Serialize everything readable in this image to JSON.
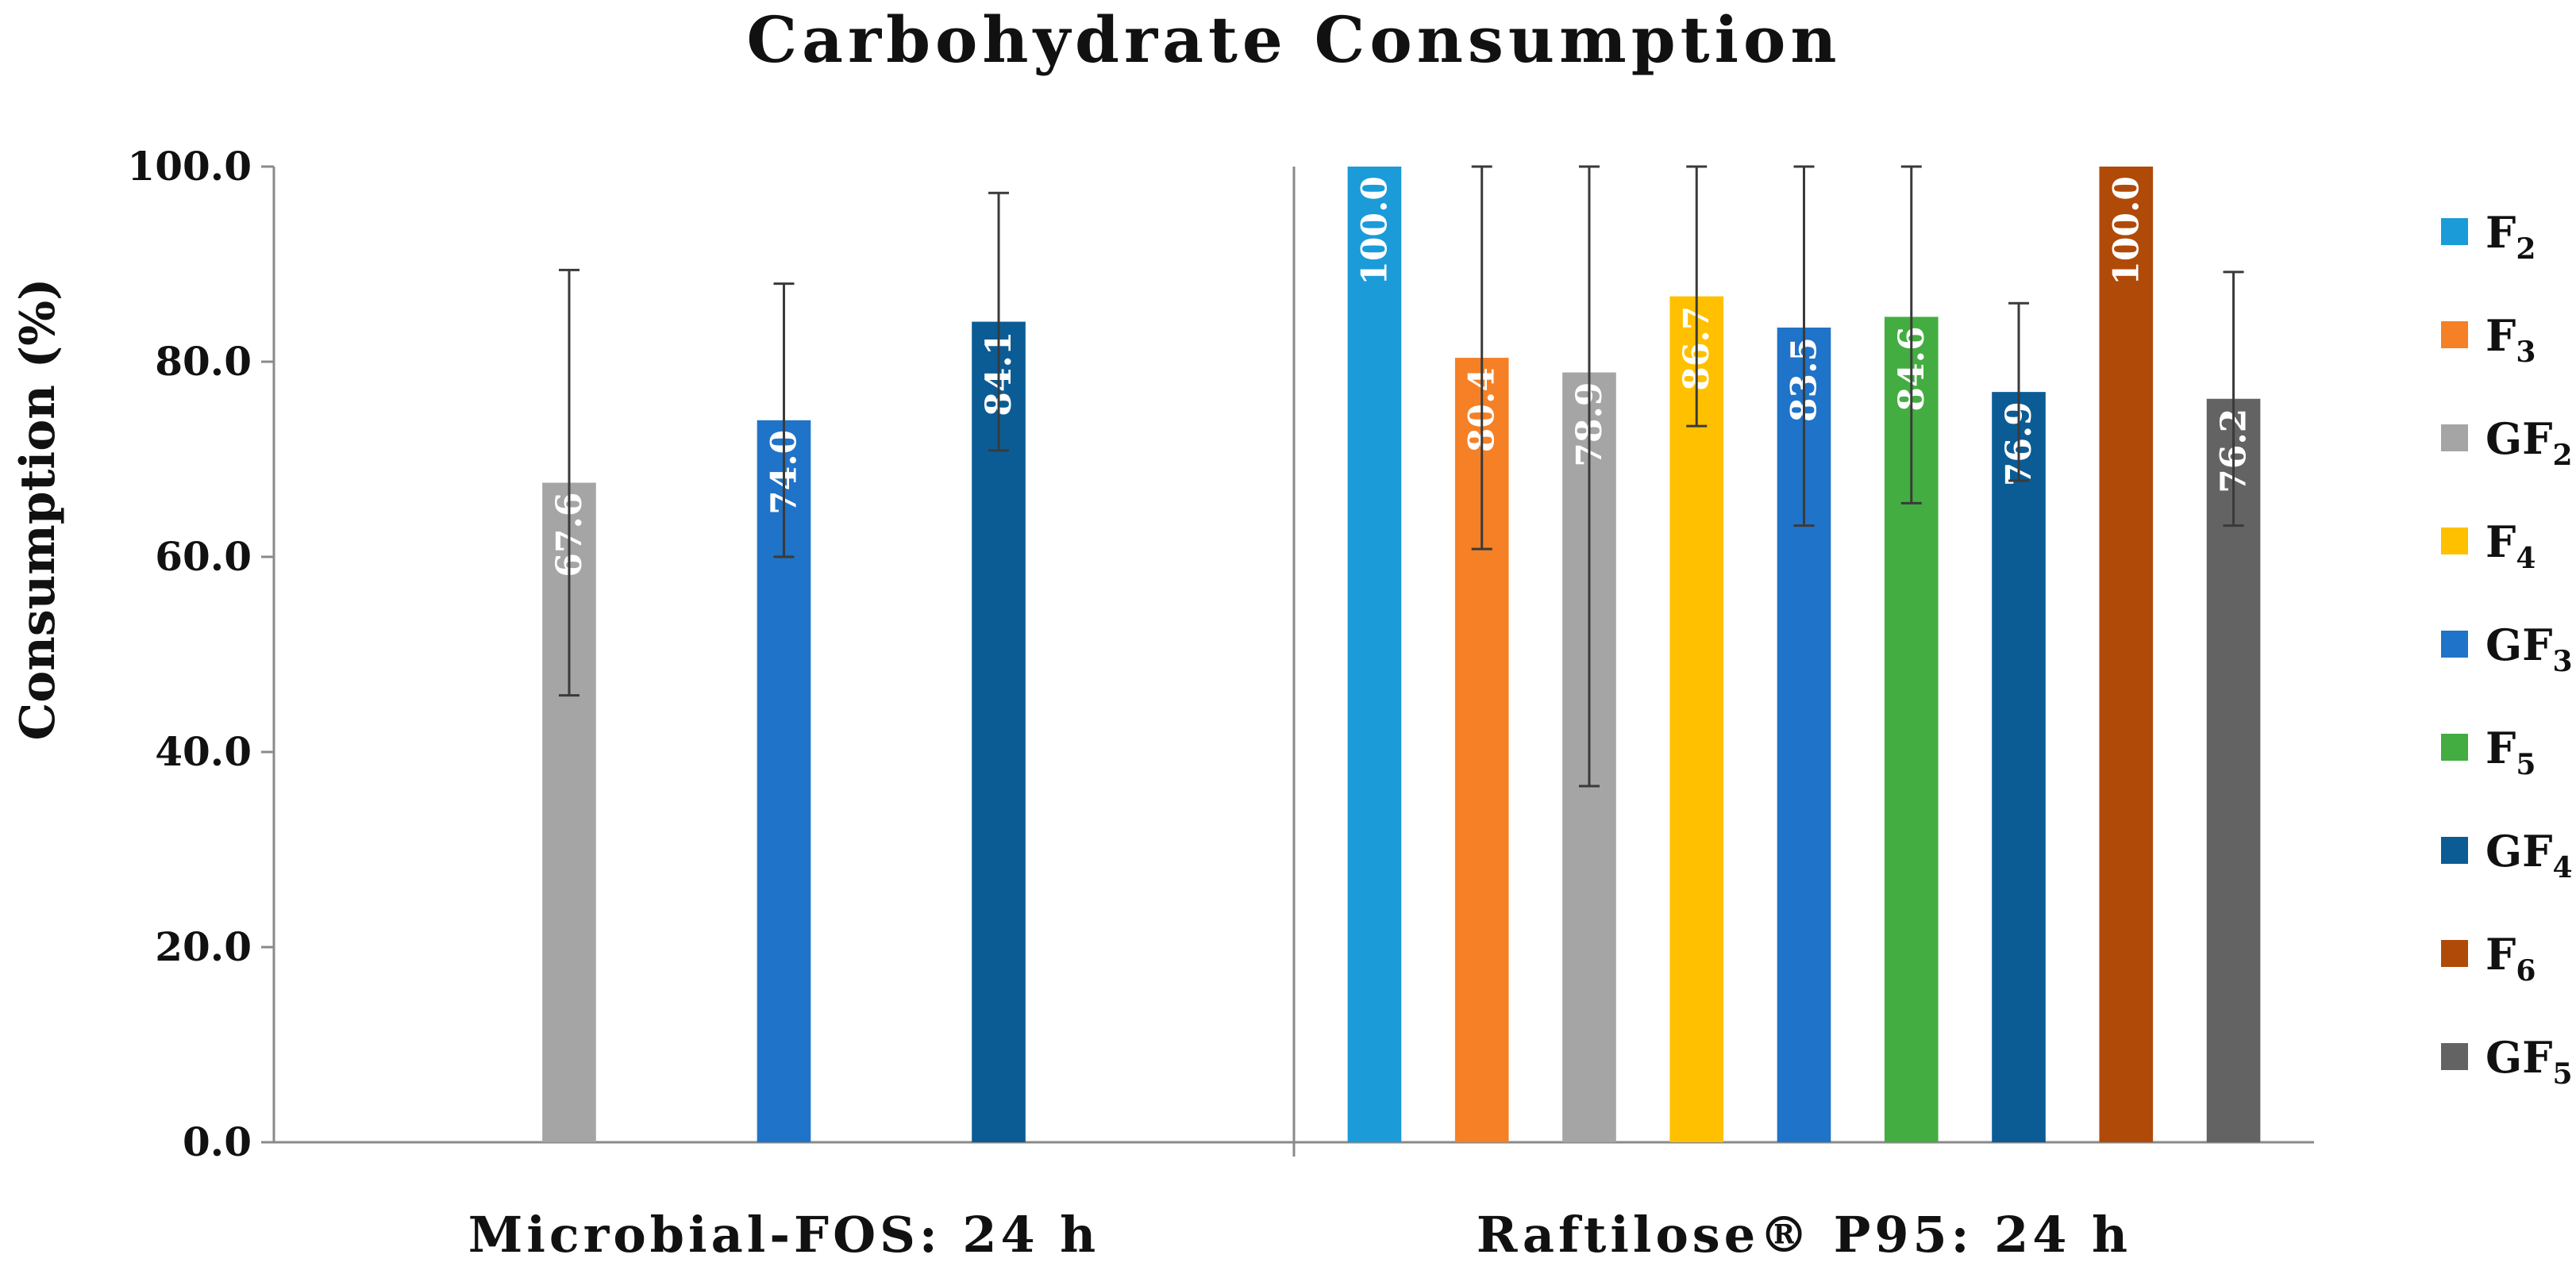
{
  "chart_data": {
    "type": "bar",
    "title": "Carbohydrate Consumption",
    "ylabel": "Consumption (%)",
    "xlabel": "",
    "ylim": [
      0,
      100
    ],
    "yticks": [
      "0.0",
      "20.0",
      "40.0",
      "60.0",
      "80.0",
      "100.0"
    ],
    "legend_position": "right",
    "categories": [
      "Microbial-FOS: 24 h",
      "Raftilose® P95: 24 h"
    ],
    "series": [
      {
        "name": "F2",
        "label_main": "F",
        "label_sub": "2",
        "color": "#1B9BD8",
        "values": [
          null,
          100.0
        ],
        "labels": [
          null,
          "100.0"
        ],
        "err_up": [
          null,
          0
        ],
        "err_down": [
          null,
          0
        ]
      },
      {
        "name": "F3",
        "label_main": "F",
        "label_sub": "3",
        "color": "#F58025",
        "values": [
          null,
          80.4
        ],
        "labels": [
          null,
          "80.4"
        ],
        "err_up": [
          null,
          19.6
        ],
        "err_down": [
          null,
          19.6
        ]
      },
      {
        "name": "GF2",
        "label_main": "GF",
        "label_sub": "2",
        "color": "#A5A5A5",
        "values": [
          67.6,
          78.9
        ],
        "labels": [
          "67.6",
          "78.9"
        ],
        "err_up": [
          21.8,
          21.1
        ],
        "err_down": [
          21.8,
          42.4
        ]
      },
      {
        "name": "F4",
        "label_main": "F",
        "label_sub": "4",
        "color": "#FFC000",
        "values": [
          null,
          86.7
        ],
        "labels": [
          null,
          "86.7"
        ],
        "err_up": [
          null,
          13.3
        ],
        "err_down": [
          null,
          13.3
        ]
      },
      {
        "name": "GF3",
        "label_main": "GF",
        "label_sub": "3",
        "color": "#1F73C8",
        "values": [
          74.0,
          83.5
        ],
        "labels": [
          "74.0",
          "83.5"
        ],
        "err_up": [
          14.0,
          16.5
        ],
        "err_down": [
          14.0,
          20.3
        ]
      },
      {
        "name": "F5",
        "label_main": "F",
        "label_sub": "5",
        "color": "#43AD41",
        "values": [
          null,
          84.6
        ],
        "labels": [
          null,
          "84.6"
        ],
        "err_up": [
          null,
          15.4
        ],
        "err_down": [
          null,
          19.1
        ]
      },
      {
        "name": "GF4",
        "label_main": "GF",
        "label_sub": "4",
        "color": "#0B5C95",
        "values": [
          84.1,
          76.9
        ],
        "labels": [
          "84.1",
          "76.9"
        ],
        "err_up": [
          13.2,
          9.1
        ],
        "err_down": [
          13.2,
          9.1
        ]
      },
      {
        "name": "F6",
        "label_main": "F",
        "label_sub": "6",
        "color": "#B04A08",
        "values": [
          null,
          100.0
        ],
        "labels": [
          null,
          "100.0"
        ],
        "err_up": [
          null,
          0
        ],
        "err_down": [
          null,
          0
        ]
      },
      {
        "name": "GF5",
        "label_main": "GF",
        "label_sub": "5",
        "color": "#636363",
        "values": [
          null,
          76.2
        ],
        "labels": [
          null,
          "76.2"
        ],
        "err_up": [
          null,
          13.0
        ],
        "err_down": [
          null,
          13.0
        ]
      }
    ]
  }
}
